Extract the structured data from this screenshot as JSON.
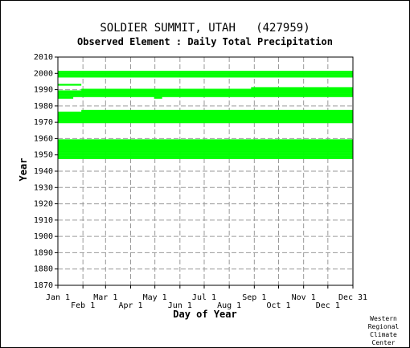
{
  "chart_data": {
    "type": "bar",
    "title": "SOLDIER SUMMIT, UTAH   (427959)",
    "subtitle": "Observed Element : Daily Total Precipitation",
    "xlabel": "Day of Year",
    "ylabel": "Year",
    "ylim": [
      1870,
      2010
    ],
    "y_ticks": [
      1870,
      1880,
      1890,
      1900,
      1910,
      1920,
      1930,
      1940,
      1950,
      1960,
      1970,
      1980,
      1990,
      2000,
      2010
    ],
    "x_ticks_upper": [
      "Jan 1",
      "Mar 1",
      "May 1",
      "Jul 1",
      "Sep 1",
      "Nov 1",
      "Dec 31"
    ],
    "x_ticks_lower": [
      "Feb 1",
      "Apr 1",
      "Jun 1",
      "Aug 1",
      "Oct 1",
      "Dec 1"
    ],
    "x_tick_days_upper": [
      1,
      60,
      121,
      182,
      244,
      305,
      366
    ],
    "x_tick_days_lower": [
      32,
      91,
      152,
      213,
      274,
      335
    ],
    "bar_color": "#00ff00",
    "series": [
      {
        "values": [
          [
            1948,
            1,
            366
          ],
          [
            1949,
            1,
            366
          ],
          [
            1950,
            1,
            366
          ],
          [
            1951,
            1,
            366
          ],
          [
            1952,
            1,
            366
          ],
          [
            1953,
            1,
            366
          ],
          [
            1954,
            1,
            366
          ],
          [
            1955,
            1,
            366
          ],
          [
            1956,
            1,
            366
          ],
          [
            1957,
            1,
            366
          ],
          [
            1958,
            1,
            366
          ],
          [
            1959,
            1,
            366
          ],
          [
            1970,
            1,
            366
          ],
          [
            1971,
            1,
            366
          ],
          [
            1972,
            1,
            366
          ],
          [
            1973,
            1,
            366
          ],
          [
            1974,
            1,
            366
          ],
          [
            1975,
            1,
            366
          ],
          [
            1976,
            1,
            366
          ],
          [
            1977,
            30,
            366
          ],
          [
            1985,
            1,
            20
          ],
          [
            1985,
            120,
            130
          ],
          [
            1986,
            1,
            366
          ],
          [
            1987,
            1,
            366
          ],
          [
            1988,
            1,
            366
          ],
          [
            1989,
            1,
            366
          ],
          [
            1990,
            30,
            366
          ],
          [
            1991,
            240,
            366
          ],
          [
            1993,
            1,
            30
          ],
          [
            1998,
            1,
            366
          ],
          [
            1999,
            1,
            366
          ],
          [
            2000,
            1,
            366
          ],
          [
            2001,
            1,
            366
          ]
        ]
      }
    ],
    "credit": [
      "Western",
      "Regional",
      "Climate",
      "Center"
    ]
  }
}
